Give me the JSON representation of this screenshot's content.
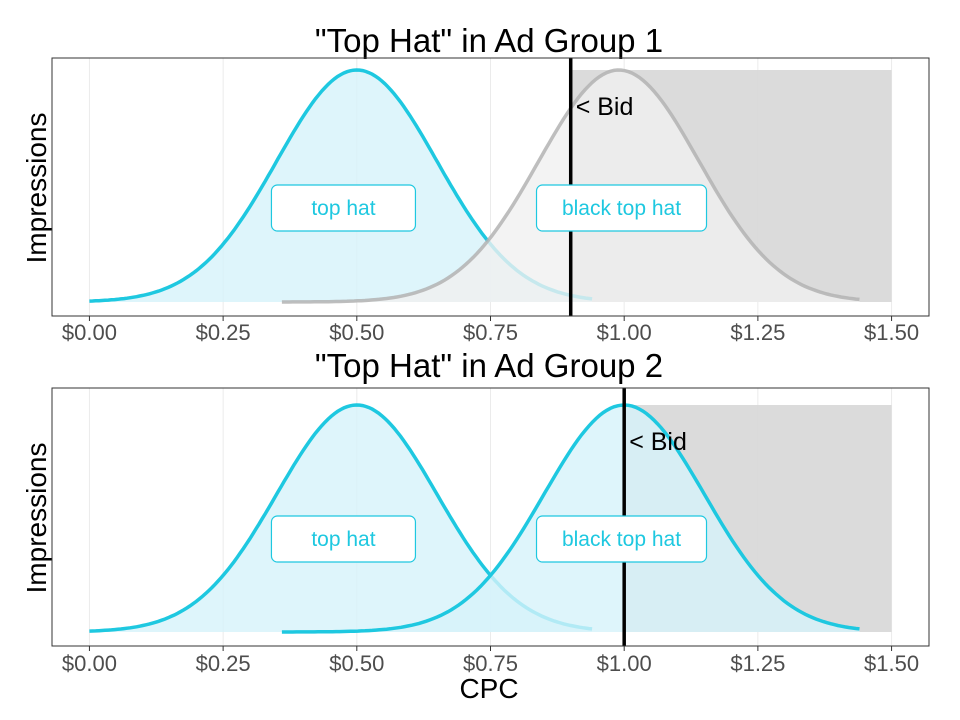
{
  "chart_data": [
    {
      "type": "area",
      "title": "\"Top Hat\" in Ad Group 1",
      "xlabel": "",
      "ylabel": "Impressions",
      "xlim": [
        -0.07,
        1.57
      ],
      "xticks": [
        "$0.00",
        "$0.25",
        "$0.50",
        "$0.75",
        "$1.00",
        "$1.25",
        "$1.50"
      ],
      "xtick_values": [
        0,
        0.25,
        0.5,
        0.75,
        1.0,
        1.25,
        1.5
      ],
      "grid": true,
      "bid": 0.9,
      "bid_label": "< Bid",
      "shade_to": 1.5,
      "series": [
        {
          "name": "top hat",
          "mean": 0.5,
          "sd": 0.15,
          "range": [
            0.0,
            0.94
          ],
          "color": "#1ec8e0",
          "highlighted": true,
          "label_at": 0.475
        },
        {
          "name": "black top hat",
          "mean": 0.99,
          "sd": 0.15,
          "range": [
            0.36,
            1.44
          ],
          "color": "#b3b3b3",
          "highlighted": false,
          "label_at": 0.995
        }
      ]
    },
    {
      "type": "area",
      "title": "\"Top Hat\" in Ad Group 2",
      "xlabel": "CPC",
      "ylabel": "Impressions",
      "xlim": [
        -0.07,
        1.57
      ],
      "xticks": [
        "$0.00",
        "$0.25",
        "$0.50",
        "$0.75",
        "$1.00",
        "$1.25",
        "$1.50"
      ],
      "xtick_values": [
        0,
        0.25,
        0.5,
        0.75,
        1.0,
        1.25,
        1.5
      ],
      "grid": true,
      "bid": 1.0,
      "bid_label": "< Bid",
      "shade_to": 1.5,
      "series": [
        {
          "name": "top hat",
          "mean": 0.5,
          "sd": 0.15,
          "range": [
            0.0,
            0.94
          ],
          "color": "#1ec8e0",
          "highlighted": true,
          "label_at": 0.475
        },
        {
          "name": "black top hat",
          "mean": 1.0,
          "sd": 0.15,
          "range": [
            0.36,
            1.44
          ],
          "color": "#1ec8e0",
          "highlighted": true,
          "label_at": 0.995
        }
      ]
    }
  ],
  "colors": {
    "highlight": "#1ec8e0",
    "highlight_fill": "#d6f3fa",
    "muted": "#b3b3b3",
    "muted_fill": "#f0f0f0",
    "shade": "#d9d9d9",
    "bid_line": "#000000"
  }
}
